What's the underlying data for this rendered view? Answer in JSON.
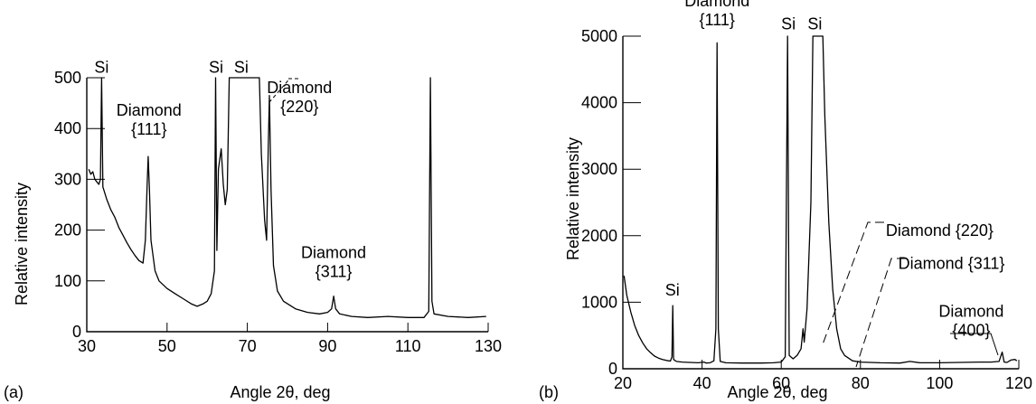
{
  "chart_data": [
    {
      "type": "line",
      "panel_label": "(a)",
      "xlabel": "Angle 2θ, deg",
      "ylabel": "Relative intensity",
      "xlim": [
        30,
        130
      ],
      "ylim": [
        0,
        500
      ],
      "xticks": [
        30,
        50,
        70,
        90,
        110,
        130
      ],
      "yticks": [
        0,
        100,
        200,
        300,
        400,
        500
      ],
      "grid": false,
      "annotations": [
        {
          "lines": [
            "Si"
          ],
          "x": 33.7,
          "y": 510
        },
        {
          "lines": [
            "Diamond",
            "{111}"
          ],
          "x": 45.5,
          "y": 425
        },
        {
          "lines": [
            "Si"
          ],
          "x": 62.2,
          "y": 510
        },
        {
          "lines": [
            "Si"
          ],
          "x": 68.5,
          "y": 510
        },
        {
          "lines": [
            "Diamond",
            "{220}"
          ],
          "x": 83,
          "y": 470
        },
        {
          "lines": [
            "Diamond",
            "{311}"
          ],
          "x": 91.5,
          "y": 145
        }
      ],
      "series": [
        {
          "values": [
            [
              30.5,
              320
            ],
            [
              31,
              310
            ],
            [
              31.5,
              315
            ],
            [
              32,
              300
            ],
            [
              32.5,
              295
            ],
            [
              33,
              290
            ],
            [
              33.4,
              300
            ],
            [
              33.7,
              500
            ],
            [
              34,
              285
            ],
            [
              35,
              260
            ],
            [
              36,
              240
            ],
            [
              37,
              225
            ],
            [
              38,
              205
            ],
            [
              39,
              190
            ],
            [
              40,
              175
            ],
            [
              41,
              162
            ],
            [
              42,
              150
            ],
            [
              43,
              140
            ],
            [
              44,
              135
            ],
            [
              44.6,
              180
            ],
            [
              45,
              280
            ],
            [
              45.3,
              345
            ],
            [
              45.6,
              280
            ],
            [
              46,
              180
            ],
            [
              47,
              120
            ],
            [
              48,
              100
            ],
            [
              50,
              85
            ],
            [
              52,
              75
            ],
            [
              54,
              65
            ],
            [
              56,
              55
            ],
            [
              57.5,
              50
            ],
            [
              59,
              55
            ],
            [
              60,
              60
            ],
            [
              61,
              75
            ],
            [
              61.8,
              120
            ],
            [
              62.1,
              500
            ],
            [
              62.4,
              160
            ],
            [
              62.8,
              320
            ],
            [
              63.5,
              360
            ],
            [
              64,
              290
            ],
            [
              64.5,
              250
            ],
            [
              65,
              280
            ],
            [
              65.5,
              500
            ],
            [
              73,
              500
            ],
            [
              73.5,
              350
            ],
            [
              74.3,
              220
            ],
            [
              74.8,
              180
            ],
            [
              75.2,
              360
            ],
            [
              75.5,
              465
            ],
            [
              75.9,
              280
            ],
            [
              76.5,
              130
            ],
            [
              77.5,
              80
            ],
            [
              79,
              60
            ],
            [
              82,
              45
            ],
            [
              85,
              38
            ],
            [
              88,
              35
            ],
            [
              90,
              38
            ],
            [
              91,
              45
            ],
            [
              91.5,
              70
            ],
            [
              92,
              45
            ],
            [
              93,
              35
            ],
            [
              96,
              30
            ],
            [
              100,
              28
            ],
            [
              105,
              30
            ],
            [
              110,
              28
            ],
            [
              114,
              28
            ],
            [
              115.2,
              40
            ],
            [
              115.6,
              500
            ],
            [
              116,
              60
            ],
            [
              116.5,
              35
            ],
            [
              120,
              30
            ],
            [
              125,
              28
            ],
            [
              129.5,
              30
            ]
          ]
        }
      ]
    },
    {
      "type": "line",
      "panel_label": "(b)",
      "xlabel": "Angle 2θ, deg",
      "ylabel": "Relative intensity",
      "xlim": [
        20,
        120
      ],
      "ylim": [
        0,
        5000
      ],
      "xticks": [
        20,
        40,
        60,
        80,
        100,
        120
      ],
      "yticks": [
        0,
        1000,
        2000,
        3000,
        4000,
        5000
      ],
      "grid": false,
      "annotations": [
        {
          "lines": [
            "Diamond",
            "{111}"
          ],
          "x": 43.8,
          "y": 5450
        },
        {
          "lines": [
            "Si"
          ],
          "x": 61.8,
          "y": 5100
        },
        {
          "lines": [
            "Si"
          ],
          "x": 68.5,
          "y": 5100
        },
        {
          "lines": [
            "Diamond {220}"
          ],
          "x": 100,
          "y": 2000
        },
        {
          "lines": [
            "Diamond {311}"
          ],
          "x": 103,
          "y": 1500
        },
        {
          "lines": [
            "Diamond",
            "{400}"
          ],
          "x": 108,
          "y": 780
        },
        {
          "lines": [
            "Si"
          ],
          "x": 32.5,
          "y": 1100
        }
      ],
      "series": [
        {
          "values": [
            [
              20.3,
              1400
            ],
            [
              21,
              1100
            ],
            [
              22,
              850
            ],
            [
              23,
              650
            ],
            [
              24,
              500
            ],
            [
              25,
              390
            ],
            [
              26,
              300
            ],
            [
              27,
              240
            ],
            [
              28,
              190
            ],
            [
              29,
              160
            ],
            [
              30,
              140
            ],
            [
              31,
              125
            ],
            [
              32,
              115
            ],
            [
              32.4,
              180
            ],
            [
              32.6,
              950
            ],
            [
              32.8,
              140
            ],
            [
              33.5,
              110
            ],
            [
              35,
              100
            ],
            [
              37,
              95
            ],
            [
              39,
              90
            ],
            [
              40.5,
              100
            ],
            [
              41,
              85
            ],
            [
              42,
              90
            ],
            [
              43,
              120
            ],
            [
              43.5,
              600
            ],
            [
              43.8,
              4900
            ],
            [
              44.1,
              600
            ],
            [
              44.6,
              110
            ],
            [
              46,
              90
            ],
            [
              50,
              85
            ],
            [
              55,
              85
            ],
            [
              58,
              90
            ],
            [
              60,
              100
            ],
            [
              61,
              180
            ],
            [
              61.6,
              5000
            ],
            [
              62,
              200
            ],
            [
              63,
              150
            ],
            [
              64,
              200
            ],
            [
              65,
              300
            ],
            [
              65.5,
              600
            ],
            [
              65.8,
              400
            ],
            [
              66.5,
              900
            ],
            [
              67.5,
              2500
            ],
            [
              68,
              5000
            ],
            [
              70.5,
              5000
            ],
            [
              71,
              3800
            ],
            [
              72,
              2200
            ],
            [
              73,
              1200
            ],
            [
              74,
              600
            ],
            [
              75,
              300
            ],
            [
              76,
              200
            ],
            [
              78,
              120
            ],
            [
              80,
              100
            ],
            [
              85,
              90
            ],
            [
              90,
              85
            ],
            [
              92.5,
              110
            ],
            [
              95,
              90
            ],
            [
              100,
              90
            ],
            [
              105,
              95
            ],
            [
              110,
              100
            ],
            [
              113,
              100
            ],
            [
              115,
              110
            ],
            [
              115.8,
              250
            ],
            [
              116.3,
              100
            ],
            [
              117,
              95
            ],
            [
              118,
              130
            ],
            [
              119,
              140
            ],
            [
              119.5,
              120
            ]
          ]
        }
      ]
    }
  ]
}
